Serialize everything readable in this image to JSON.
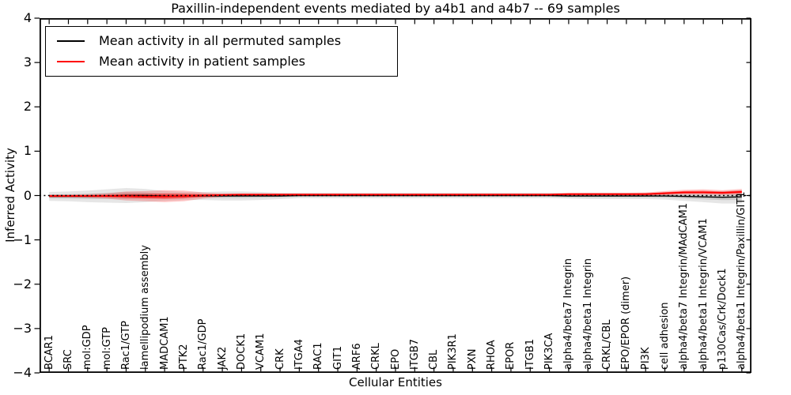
{
  "chart_data": {
    "type": "line",
    "title": "Paxillin-independent events mediated by a4b1 and a4b7 -- 69 samples",
    "xlabel": "Cellular Entities",
    "ylabel": "Inferred Activity",
    "ylim": [
      -4,
      4
    ],
    "yticks": [
      4,
      3,
      2,
      1,
      0,
      -1,
      -2,
      -3,
      -4
    ],
    "grid": false,
    "zero_line": true,
    "legend_position": "upper left",
    "categories": [
      "BCAR1",
      "SRC",
      "mol:GDP",
      "mol:GTP",
      "Rac1/GTP",
      "lamellipodium assembly",
      "MADCAM1",
      "PTK2",
      "Rac1/GDP",
      "JAK2",
      "DOCK1",
      "VCAM1",
      "CRK",
      "ITGA4",
      "RAC1",
      "GIT1",
      "ARF6",
      "CRKL",
      "EPO",
      "ITGB7",
      "CBL",
      "PIK3R1",
      "PXN",
      "RHOA",
      "EPOR",
      "ITGB1",
      "PIK3CA",
      "alpha4/beta7 Integrin",
      "alpha4/beta1 Integrin",
      "CRKL/CBL",
      "EPO/EPOR (dimer)",
      "PI3K",
      "cell adhesion",
      "alpha4/beta7 Integrin/MAdCAM1",
      "alpha4/beta1 Integrin/VCAM1",
      "p130Cas/Crk/Dock1",
      "alpha4/beta1 Integrin/Paxillin/GIT1"
    ],
    "series": [
      {
        "name": "Mean activity in all permuted samples",
        "color": "#000000",
        "values": [
          -0.02,
          -0.02,
          -0.02,
          -0.01,
          0,
          0,
          -0.01,
          -0.01,
          -0.01,
          -0.01,
          -0.01,
          -0.01,
          -0.01,
          0,
          0,
          0,
          0,
          0,
          0,
          0,
          0,
          0,
          0,
          0,
          0,
          0,
          0,
          -0.01,
          -0.01,
          -0.01,
          -0.01,
          -0.01,
          -0.01,
          -0.02,
          -0.03,
          -0.04,
          -0.03
        ]
      },
      {
        "name": "Mean activity in patient samples",
        "color": "#ff0000",
        "values": [
          -0.01,
          -0.01,
          -0.01,
          -0.01,
          -0.01,
          -0.02,
          -0.02,
          -0.01,
          0,
          0.01,
          0.02,
          0.02,
          0.02,
          0.02,
          0.02,
          0.02,
          0.02,
          0.02,
          0.02,
          0.02,
          0.02,
          0.02,
          0.02,
          0.02,
          0.02,
          0.02,
          0.02,
          0.03,
          0.03,
          0.03,
          0.03,
          0.03,
          0.05,
          0.07,
          0.07,
          0.06,
          0.08
        ]
      }
    ],
    "bands": [
      {
        "name": "permuted-range",
        "color": "rgba(128,128,128,0.20)",
        "core_color": "rgba(128,128,128,0.28)",
        "lo": [
          -0.12,
          -0.13,
          -0.15,
          -0.16,
          -0.17,
          -0.15,
          -0.12,
          -0.1,
          -0.1,
          -0.11,
          -0.11,
          -0.1,
          -0.08,
          -0.06,
          -0.06,
          -0.06,
          -0.06,
          -0.06,
          -0.06,
          -0.06,
          -0.06,
          -0.06,
          -0.06,
          -0.06,
          -0.06,
          -0.06,
          -0.06,
          -0.07,
          -0.08,
          -0.08,
          -0.08,
          -0.08,
          -0.09,
          -0.12,
          -0.15,
          -0.18,
          -0.18
        ],
        "hi": [
          0.08,
          0.09,
          0.11,
          0.14,
          0.17,
          0.15,
          0.1,
          0.08,
          0.08,
          0.09,
          0.09,
          0.08,
          0.06,
          0.06,
          0.06,
          0.06,
          0.06,
          0.06,
          0.06,
          0.06,
          0.06,
          0.06,
          0.06,
          0.06,
          0.06,
          0.06,
          0.06,
          0.05,
          0.06,
          0.06,
          0.06,
          0.06,
          0.07,
          0.08,
          0.09,
          0.1,
          0.12
        ]
      },
      {
        "name": "patient-range",
        "color": "rgba(255,0,0,0.22)",
        "core_color": "rgba(255,0,0,0.45)",
        "lo": [
          -0.04,
          -0.04,
          -0.05,
          -0.07,
          -0.11,
          -0.13,
          -0.15,
          -0.13,
          -0.07,
          -0.03,
          -0.01,
          0,
          0,
          -0.01,
          0,
          0,
          0,
          0,
          0,
          0,
          0,
          0,
          0,
          0,
          0,
          0,
          0,
          0,
          0,
          0,
          0,
          0,
          0.01,
          0.02,
          0.02,
          0.01,
          0.02
        ],
        "hi": [
          0.02,
          0.02,
          0.03,
          0.05,
          0.09,
          0.1,
          0.12,
          0.11,
          0.07,
          0.05,
          0.05,
          0.05,
          0.05,
          0.05,
          0.05,
          0.05,
          0.05,
          0.05,
          0.05,
          0.05,
          0.05,
          0.05,
          0.05,
          0.05,
          0.05,
          0.05,
          0.05,
          0.06,
          0.06,
          0.06,
          0.06,
          0.07,
          0.1,
          0.13,
          0.14,
          0.12,
          0.15
        ]
      }
    ]
  }
}
